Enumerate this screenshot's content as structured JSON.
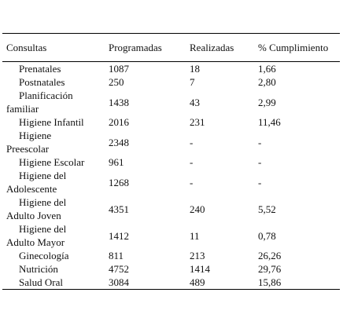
{
  "table": {
    "header": [
      "Consultas",
      "Programadas",
      "Realizadas",
      "% Cumplimiento"
    ],
    "rows": [
      [
        "Prenatales",
        "1087",
        "18",
        "1,66"
      ],
      [
        "Postnatales",
        "250",
        "7",
        "2,80"
      ],
      [
        "Planificación familiar",
        "1438",
        "43",
        "2,99"
      ],
      [
        "Higiene Infantil",
        "2016",
        "231",
        "11,46"
      ],
      [
        "Higiene Preescolar",
        "2348",
        "-",
        "-"
      ],
      [
        "Higiene Escolar",
        "961",
        "-",
        "-"
      ],
      [
        "Higiene del Adolescente",
        "1268",
        "-",
        "-"
      ],
      [
        "Higiene del Adulto Joven",
        "4351",
        "240",
        "5,52"
      ],
      [
        "Higiene del Adulto Mayor",
        "1412",
        "11",
        "0,78"
      ],
      [
        "Ginecología",
        "811",
        "213",
        "26,26"
      ],
      [
        "Nutrición",
        "4752",
        "1414",
        "29,76"
      ],
      [
        "Salud Oral",
        "3084",
        "489",
        "15,86"
      ]
    ]
  }
}
